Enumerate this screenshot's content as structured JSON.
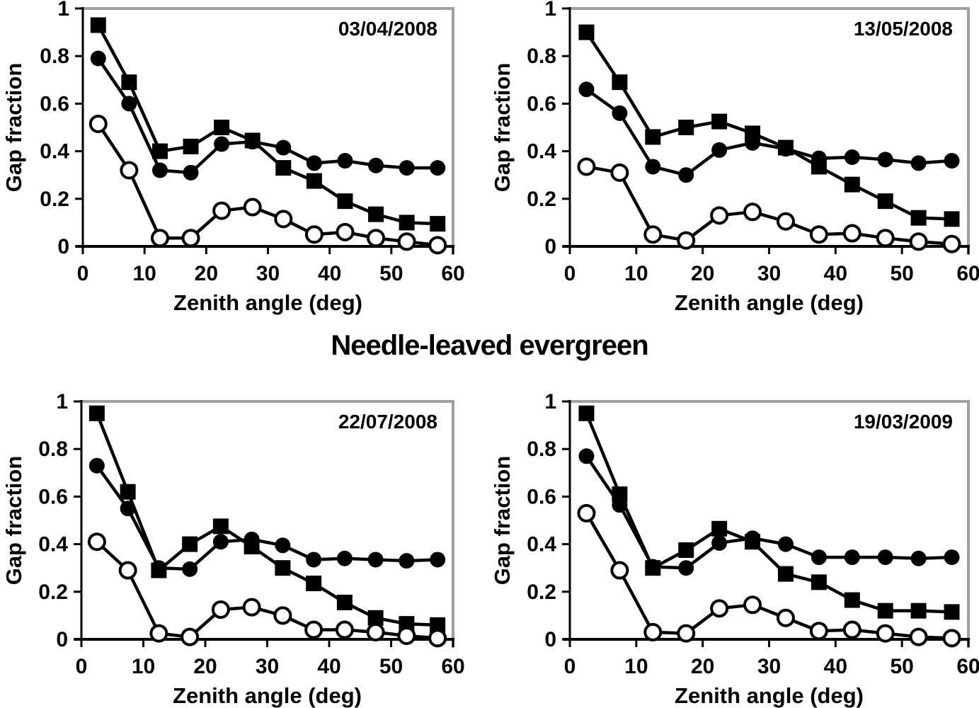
{
  "figure": {
    "title": "Needle-leaved evergreen",
    "colors": {
      "data_black": "#000000",
      "frame_gray": "#a0a0a0",
      "background": "#ffffff"
    }
  },
  "chart_data": [
    {
      "type": "line",
      "panel": "top-left",
      "annotation": "03/04/2008",
      "xlabel": "Zenith angle (deg)",
      "ylabel": "Gap fraction",
      "xlim": [
        0,
        60
      ],
      "ylim": [
        0,
        1
      ],
      "xticks": [
        0,
        10,
        20,
        30,
        40,
        50,
        60
      ],
      "yticks": [
        0,
        0.2,
        0.4,
        0.6,
        0.8,
        1
      ],
      "ytick_labels": [
        "0",
        "0.2",
        "0.4",
        "0.6",
        "0.8",
        "1"
      ],
      "grid": false,
      "legend": "none",
      "x": [
        2.5,
        7.5,
        12.5,
        17.5,
        22.5,
        27.5,
        32.5,
        37.5,
        42.5,
        47.5,
        52.5,
        57.5
      ],
      "series": [
        {
          "name": "filled-circle",
          "marker": "circle-filled",
          "values": [
            0.79,
            0.6,
            0.32,
            0.31,
            0.43,
            0.44,
            0.415,
            0.35,
            0.36,
            0.34,
            0.33,
            0.33
          ]
        },
        {
          "name": "filled-square",
          "marker": "square-filled",
          "values": [
            0.93,
            0.69,
            0.4,
            0.42,
            0.5,
            0.445,
            0.33,
            0.275,
            0.19,
            0.135,
            0.1,
            0.095
          ]
        },
        {
          "name": "open-circle",
          "marker": "circle-open",
          "values": [
            0.515,
            0.32,
            0.035,
            0.035,
            0.15,
            0.165,
            0.115,
            0.05,
            0.06,
            0.035,
            0.02,
            0.005
          ]
        }
      ]
    },
    {
      "type": "line",
      "panel": "top-right",
      "annotation": "13/05/2008",
      "xlabel": "Zenith angle (deg)",
      "ylabel": "Gap fraction",
      "xlim": [
        0,
        60
      ],
      "ylim": [
        0,
        1
      ],
      "xticks": [
        0,
        10,
        20,
        30,
        40,
        50,
        60
      ],
      "yticks": [
        0,
        0.2,
        0.4,
        0.6,
        0.8,
        1
      ],
      "ytick_labels": [
        "0",
        "0.2",
        "0.4",
        "0.6",
        "0.8",
        "1"
      ],
      "grid": false,
      "legend": "none",
      "x": [
        2.5,
        7.5,
        12.5,
        17.5,
        22.5,
        27.5,
        32.5,
        37.5,
        42.5,
        47.5,
        52.5,
        57.5
      ],
      "series": [
        {
          "name": "filled-circle",
          "marker": "circle-filled",
          "values": [
            0.66,
            0.56,
            0.335,
            0.3,
            0.405,
            0.435,
            0.41,
            0.37,
            0.375,
            0.365,
            0.35,
            0.36
          ]
        },
        {
          "name": "filled-square",
          "marker": "square-filled",
          "values": [
            0.9,
            0.69,
            0.46,
            0.5,
            0.525,
            0.475,
            0.415,
            0.335,
            0.26,
            0.19,
            0.12,
            0.115
          ]
        },
        {
          "name": "open-circle",
          "marker": "circle-open",
          "values": [
            0.335,
            0.31,
            0.05,
            0.025,
            0.13,
            0.145,
            0.105,
            0.05,
            0.055,
            0.035,
            0.02,
            0.01
          ]
        }
      ]
    },
    {
      "type": "line",
      "panel": "bottom-left",
      "annotation": "22/07/2008",
      "xlabel": "Zenith angle (deg)",
      "ylabel": "Gap fraction",
      "xlim": [
        0,
        60
      ],
      "ylim": [
        0,
        1
      ],
      "xticks": [
        0,
        10,
        20,
        30,
        40,
        50,
        60
      ],
      "yticks": [
        0,
        0.2,
        0.4,
        0.6,
        0.8,
        1
      ],
      "ytick_labels": [
        "0",
        "0.2",
        "0.4",
        "0.6",
        "0.8",
        "1"
      ],
      "grid": false,
      "legend": "none",
      "x": [
        2.5,
        7.5,
        12.5,
        17.5,
        22.5,
        27.5,
        32.5,
        37.5,
        42.5,
        47.5,
        52.5,
        57.5
      ],
      "series": [
        {
          "name": "filled-circle",
          "marker": "circle-filled",
          "values": [
            0.73,
            0.55,
            0.3,
            0.295,
            0.41,
            0.42,
            0.395,
            0.335,
            0.34,
            0.335,
            0.33,
            0.335
          ]
        },
        {
          "name": "filled-square",
          "marker": "square-filled",
          "values": [
            0.95,
            0.62,
            0.29,
            0.4,
            0.475,
            0.39,
            0.3,
            0.235,
            0.155,
            0.09,
            0.065,
            0.06
          ]
        },
        {
          "name": "open-circle",
          "marker": "circle-open",
          "values": [
            0.41,
            0.29,
            0.025,
            0.01,
            0.125,
            0.135,
            0.1,
            0.04,
            0.04,
            0.03,
            0.015,
            0.005
          ]
        }
      ]
    },
    {
      "type": "line",
      "panel": "bottom-right",
      "annotation": "19/03/2009",
      "xlabel": "Zenith angle (deg)",
      "ylabel": "Gap fraction",
      "xlim": [
        0,
        60
      ],
      "ylim": [
        0,
        1
      ],
      "xticks": [
        0,
        10,
        20,
        30,
        40,
        50,
        60
      ],
      "yticks": [
        0,
        0.2,
        0.4,
        0.6,
        0.8,
        1
      ],
      "ytick_labels": [
        "0",
        "0.2",
        "0.4",
        "0.6",
        "0.8",
        "1"
      ],
      "grid": false,
      "legend": "none",
      "x": [
        2.5,
        7.5,
        12.5,
        17.5,
        22.5,
        27.5,
        32.5,
        37.5,
        42.5,
        47.5,
        52.5,
        57.5
      ],
      "series": [
        {
          "name": "filled-circle",
          "marker": "circle-filled",
          "values": [
            0.77,
            0.565,
            0.305,
            0.3,
            0.405,
            0.425,
            0.4,
            0.345,
            0.345,
            0.345,
            0.34,
            0.345
          ]
        },
        {
          "name": "filled-square",
          "marker": "square-filled",
          "values": [
            0.95,
            0.61,
            0.3,
            0.375,
            0.465,
            0.41,
            0.275,
            0.24,
            0.165,
            0.12,
            0.12,
            0.115
          ]
        },
        {
          "name": "open-circle",
          "marker": "circle-open",
          "values": [
            0.53,
            0.29,
            0.03,
            0.025,
            0.13,
            0.145,
            0.09,
            0.035,
            0.04,
            0.025,
            0.01,
            0.005
          ]
        }
      ]
    }
  ]
}
